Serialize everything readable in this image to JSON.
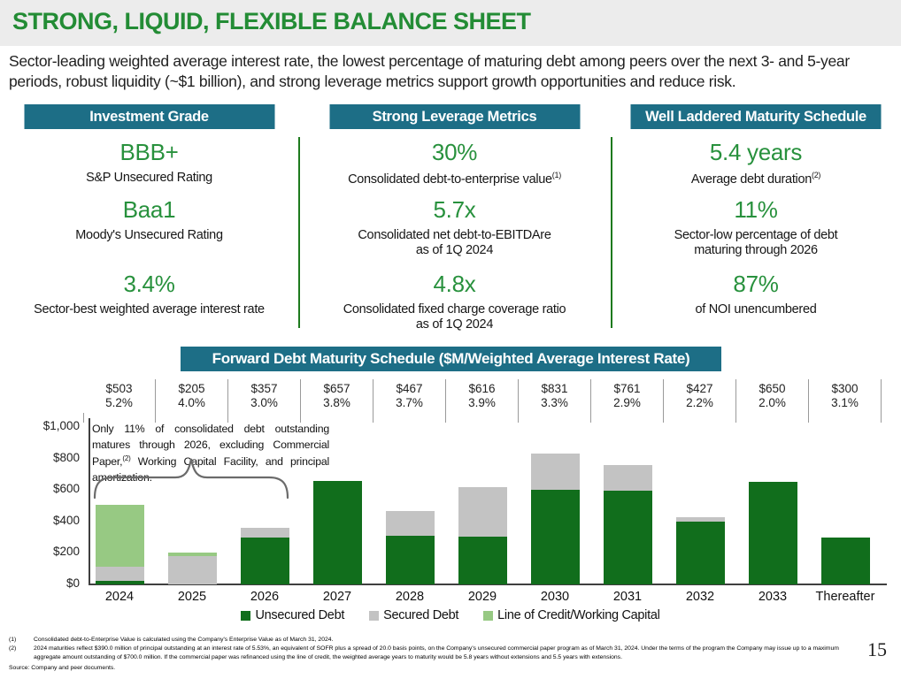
{
  "slide": {
    "title": "STRONG, LIQUID, FLEXIBLE BALANCE SHEET",
    "intro": "Sector-leading weighted average interest rate, the lowest percentage of maturing debt among peers over the next 3- and 5-year periods, robust liquidity (~$1 billion), and strong leverage metrics support growth opportunities and reduce risk.",
    "page_number": "15"
  },
  "colors": {
    "title_green": "#238c35",
    "metric_green": "#28913d",
    "teal": "#1d6e86",
    "unsecured": "#116e1c",
    "secured": "#c3c3c3",
    "loc": "#97c983",
    "divider_green": "#1e7a1e"
  },
  "pillars": [
    {
      "header": "Investment Grade",
      "metrics": [
        {
          "value": "BBB+",
          "label": "S&P Unsecured Rating",
          "sup": ""
        },
        {
          "value": "Baa1",
          "label": "Moody's Unsecured Rating",
          "sup": ""
        },
        {
          "value": "3.4%",
          "label": "Sector-best weighted average interest rate",
          "sup": ""
        }
      ]
    },
    {
      "header": "Strong Leverage Metrics",
      "metrics": [
        {
          "value": "30%",
          "label": "Consolidated debt-to-enterprise value",
          "sup": "(1)"
        },
        {
          "value": "5.7x",
          "label": "Consolidated net debt-to-EBITDAre\nas of 1Q 2024",
          "sup": ""
        },
        {
          "value": "4.8x",
          "label": "Consolidated fixed charge coverage ratio\nas of 1Q 2024",
          "sup": ""
        }
      ]
    },
    {
      "header": "Well Laddered Maturity Schedule",
      "metrics": [
        {
          "value": "5.4 years",
          "label": "Average debt duration",
          "sup": "(2)"
        },
        {
          "value": "11%",
          "label": "Sector-low percentage of debt\nmaturing through 2026",
          "sup": ""
        },
        {
          "value": "87%",
          "label": "of NOI unencumbered",
          "sup": ""
        }
      ]
    }
  ],
  "chart": {
    "banner": "Forward Debt Maturity Schedule ($M/Weighted Average Interest Rate)",
    "annotation": {
      "before": "Only 11% of consolidated debt outstanding matures through 2026, excluding Commercial Paper,",
      "sup": "(2)",
      "after": " Working Capital Facility, and principal amortization."
    }
  },
  "chart_data": {
    "type": "bar",
    "stacked": true,
    "title": "Forward Debt Maturity Schedule ($M/Weighted Average Interest Rate)",
    "categories": [
      "2024",
      "2025",
      "2026",
      "2027",
      "2028",
      "2029",
      "2030",
      "2031",
      "2032",
      "2033",
      "Thereafter"
    ],
    "series": [
      {
        "name": "Unsecured Debt",
        "color_key": "unsecured",
        "values": [
          20,
          0,
          300,
          657,
          310,
          305,
          600,
          595,
          400,
          650,
          300
        ]
      },
      {
        "name": "Secured Debt",
        "color_key": "secured",
        "values": [
          93,
          180,
          57,
          0,
          157,
          311,
          231,
          166,
          27,
          0,
          0
        ]
      },
      {
        "name": "Line of Credit/Working Capital",
        "color_key": "loc",
        "values": [
          390,
          25,
          0,
          0,
          0,
          0,
          0,
          0,
          0,
          0,
          0
        ]
      }
    ],
    "totals": [
      "$503",
      "$205",
      "$357",
      "$657",
      "$467",
      "$616",
      "$831",
      "$761",
      "$427",
      "$650",
      "$300"
    ],
    "rates": [
      "5.2%",
      "4.0%",
      "3.0%",
      "3.8%",
      "3.7%",
      "3.9%",
      "3.3%",
      "2.9%",
      "2.2%",
      "2.0%",
      "3.1%"
    ],
    "y_ticks": [
      {
        "value": 0,
        "label": "$0"
      },
      {
        "value": 200,
        "label": "$200"
      },
      {
        "value": 400,
        "label": "$400"
      },
      {
        "value": 600,
        "label": "$600"
      },
      {
        "value": 800,
        "label": "$800"
      },
      {
        "value": 1000,
        "label": "$1,000"
      }
    ],
    "ylim": [
      0,
      1000
    ],
    "grid": false,
    "legend_position": "bottom"
  },
  "footnotes": {
    "items": [
      {
        "num": "(1)",
        "text": "Consolidated debt-to-Enterprise Value is calculated using the Company's Enterprise Value as of March 31, 2024."
      },
      {
        "num": "(2)",
        "text": "2024 maturities reflect $390.0 million of principal outstanding at an interest rate of 5.53%, an equivalent of SOFR plus a spread of 20.0 basis points, on the Company's unsecured commercial paper program as of March 31, 2024. Under the terms of the program the Company may issue up to a maximum aggregate amount outstanding of $700.0 million. If the commercial paper was refinanced using the line of credit, the weighted average years to maturity would be 5.8 years without extensions and 5.5 years with extensions."
      }
    ],
    "source": "Source:  Company and peer documents."
  }
}
